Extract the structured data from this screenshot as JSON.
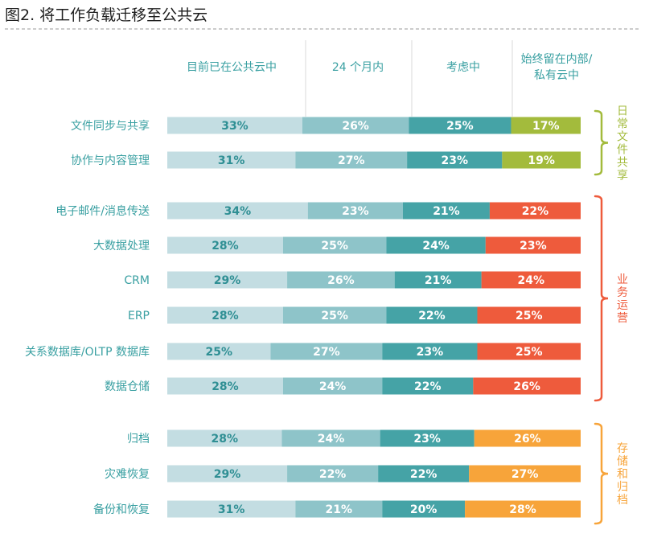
{
  "figure": {
    "title": "图2. 将工作负载迁移至公共云"
  },
  "chart_data": {
    "type": "bar",
    "orientation": "horizontal",
    "stacked": true,
    "value_unit": "%",
    "categories": [
      "文件同步与共享",
      "协作与内容管理",
      "电子邮件/消息传送",
      "大数据处理",
      "CRM",
      "ERP",
      "关系数据库/OLTP 数据库",
      "数据仓储",
      "归档",
      "灾难恢复",
      "备份和恢复"
    ],
    "series": [
      {
        "name": "目前已在公共云中",
        "values": [
          33,
          31,
          34,
          28,
          29,
          28,
          25,
          28,
          28,
          29,
          31
        ]
      },
      {
        "name": "24 个月内",
        "values": [
          26,
          27,
          23,
          25,
          26,
          25,
          27,
          24,
          24,
          22,
          21
        ]
      },
      {
        "name": "考虑中",
        "values": [
          25,
          23,
          21,
          24,
          21,
          22,
          23,
          22,
          23,
          22,
          20
        ]
      },
      {
        "name": "始终留在内部/私有云中",
        "values": [
          17,
          19,
          22,
          23,
          24,
          25,
          25,
          26,
          26,
          27,
          28
        ]
      }
    ],
    "column_headers": [
      [
        "目前已在公共云中"
      ],
      [
        "24 个月内"
      ],
      [
        "考虑中"
      ],
      [
        "始终留在内部/",
        "私有云中"
      ]
    ],
    "groups": [
      {
        "label": "日常文件共享",
        "rows": [
          0,
          1
        ],
        "color": "#a3bb3c"
      },
      {
        "label": "业务运营",
        "rows": [
          2,
          3,
          4,
          5,
          6,
          7
        ],
        "color": "#ee5b3c"
      },
      {
        "label": "存储和归档",
        "rows": [
          8,
          9,
          10
        ],
        "color": "#f7a43a"
      }
    ],
    "colors": {
      "series1": "#c3dde2",
      "series2": "#8ec4c9",
      "series3": "#45a3a6",
      "series4_by_group": [
        "#a3bb3c",
        "#ee5b3c",
        "#f7a43a"
      ],
      "label_dark": "#2f8f94",
      "label_light": "#ffffff",
      "category_text": "#3aa0a2",
      "header_text": "#3aa0a2"
    }
  }
}
